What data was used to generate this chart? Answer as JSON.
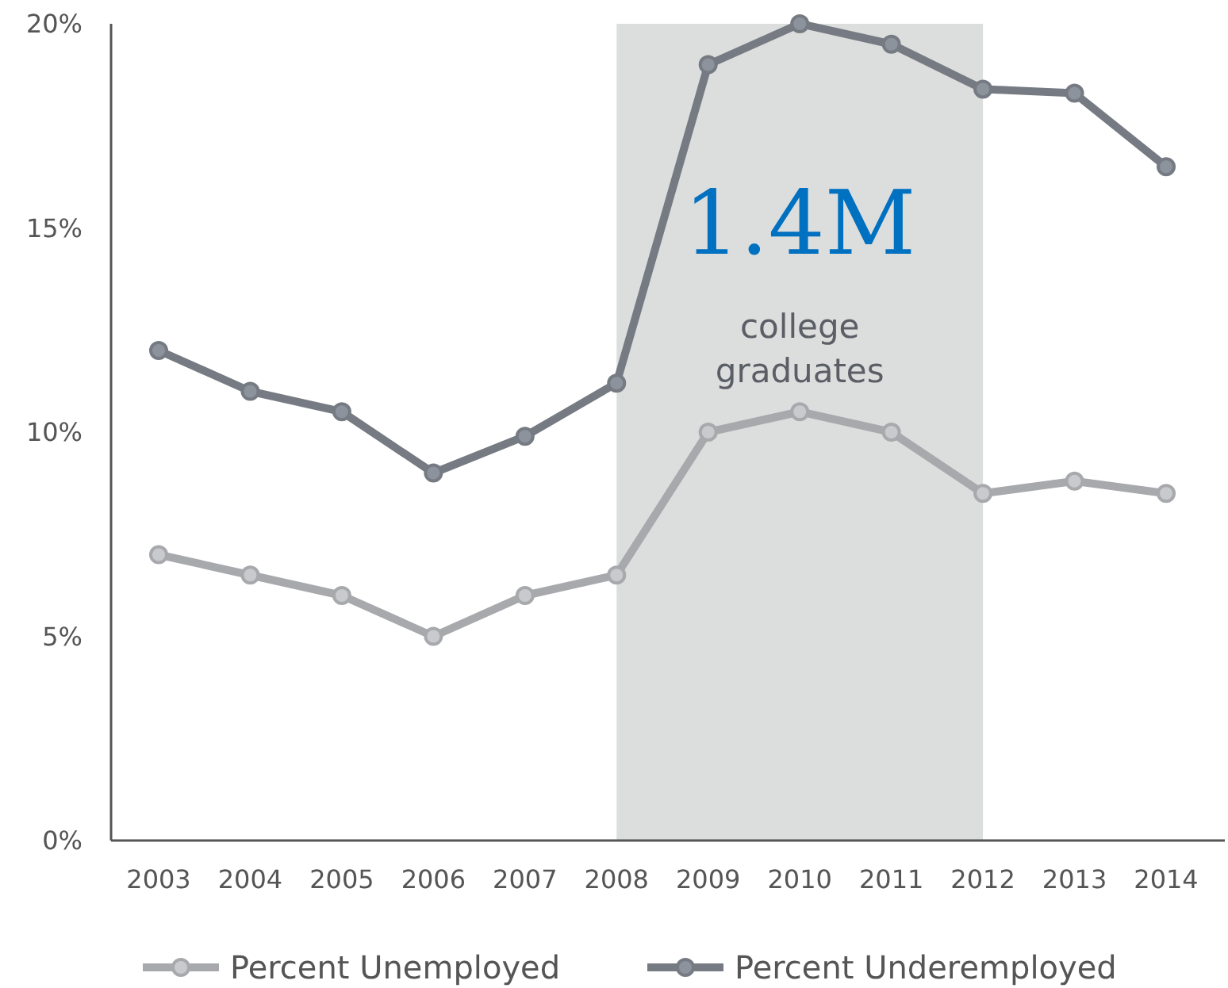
{
  "chart_data": {
    "type": "line",
    "categories": [
      "2003",
      "2004",
      "2005",
      "2006",
      "2007",
      "2008",
      "2009",
      "2010",
      "2011",
      "2012",
      "2013",
      "2014"
    ],
    "series": [
      {
        "name": "Percent Unemployed",
        "color": "#a7a9ac",
        "values": [
          7.0,
          6.5,
          6.0,
          5.0,
          6.0,
          6.5,
          10.0,
          10.5,
          10.0,
          8.5,
          8.8,
          8.5
        ]
      },
      {
        "name": "Percent Underemployed",
        "color": "#767b83",
        "values": [
          12.0,
          11.0,
          10.5,
          9.0,
          9.9,
          11.2,
          19.0,
          20.0,
          19.5,
          18.4,
          18.3,
          16.5
        ]
      }
    ],
    "ylim": [
      0,
      20
    ],
    "yticks": [
      {
        "value": 0,
        "label": "0%"
      },
      {
        "value": 5,
        "label": "5%"
      },
      {
        "value": 10,
        "label": "10%"
      },
      {
        "value": 15,
        "label": "15%"
      },
      {
        "value": 20,
        "label": "20%"
      }
    ],
    "bands": [
      {
        "axis": "x",
        "from": "2008",
        "to": "2012",
        "color": "#dcdddd"
      }
    ],
    "annotations": [
      "1.4M",
      "college graduates"
    ],
    "grid": false,
    "legend": "bottom",
    "marker": "circle",
    "line_style": "solid"
  }
}
